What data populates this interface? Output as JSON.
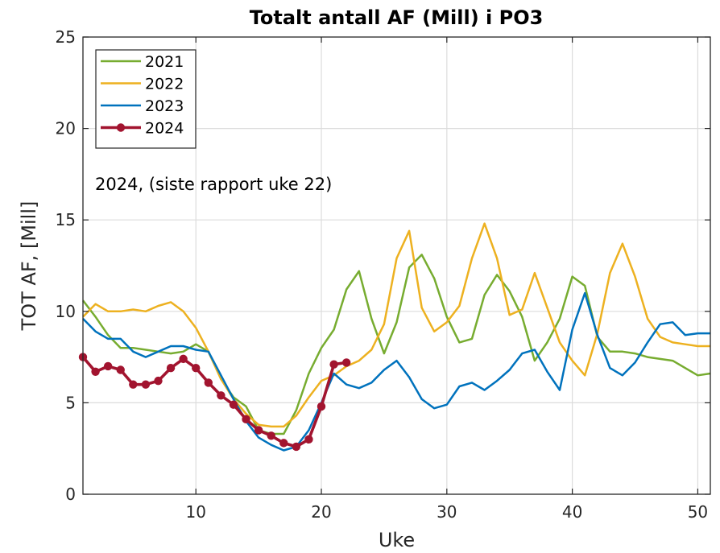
{
  "chart_data": {
    "type": "line",
    "title": "Totalt antall AF (Mill) i PO3",
    "xlabel": "Uke",
    "ylabel": "TOT AF, [Mill]",
    "xlim": [
      1,
      51
    ],
    "ylim": [
      0,
      25
    ],
    "xticks": [
      10,
      20,
      30,
      40,
      50
    ],
    "yticks": [
      0,
      5,
      10,
      15,
      20,
      25
    ],
    "grid": true,
    "legend_position": "top-left",
    "annotation": "2024, (siste rapport uke 22)",
    "series": [
      {
        "name": "2021",
        "color": "#77ac30",
        "marker": false,
        "x": [
          1,
          2,
          3,
          4,
          5,
          6,
          7,
          8,
          9,
          10,
          11,
          12,
          13,
          14,
          15,
          16,
          17,
          18,
          19,
          20,
          21,
          22,
          23,
          24,
          25,
          26,
          27,
          28,
          29,
          30,
          31,
          32,
          33,
          34,
          35,
          36,
          37,
          38,
          39,
          40,
          41,
          42,
          43,
          44,
          45,
          46,
          47,
          48,
          49,
          50,
          51
        ],
        "y": [
          10.6,
          9.7,
          8.7,
          8.0,
          8.0,
          7.9,
          7.8,
          7.7,
          7.8,
          8.2,
          7.8,
          6.3,
          5.3,
          4.8,
          3.5,
          3.3,
          3.3,
          4.6,
          6.6,
          8.0,
          9.0,
          11.2,
          12.2,
          9.6,
          7.7,
          9.4,
          12.4,
          13.1,
          11.8,
          9.7,
          8.3,
          8.5,
          10.9,
          12.0,
          11.1,
          9.7,
          7.3,
          8.3,
          9.6,
          11.9,
          11.4,
          8.6,
          7.8,
          7.8,
          7.7,
          7.5,
          7.4,
          7.3,
          6.9,
          6.5,
          6.6
        ]
      },
      {
        "name": "2022",
        "color": "#edb120",
        "marker": false,
        "x": [
          1,
          2,
          3,
          4,
          5,
          6,
          7,
          8,
          9,
          10,
          11,
          12,
          13,
          14,
          15,
          16,
          17,
          18,
          19,
          20,
          21,
          22,
          23,
          24,
          25,
          26,
          27,
          28,
          29,
          30,
          31,
          32,
          33,
          34,
          35,
          36,
          37,
          38,
          39,
          40,
          41,
          42,
          43,
          44,
          45,
          46,
          47,
          48,
          49,
          50,
          51
        ],
        "y": [
          9.7,
          10.4,
          10.0,
          10.0,
          10.1,
          10.0,
          10.3,
          10.5,
          10.0,
          9.1,
          7.8,
          6.3,
          5.2,
          4.4,
          3.8,
          3.7,
          3.7,
          4.3,
          5.3,
          6.2,
          6.5,
          7.0,
          7.3,
          7.9,
          9.3,
          12.9,
          14.4,
          10.2,
          8.9,
          9.4,
          10.3,
          12.9,
          14.8,
          12.9,
          9.8,
          10.1,
          12.1,
          10.2,
          8.3,
          7.3,
          6.5,
          8.8,
          12.1,
          13.7,
          11.9,
          9.6,
          8.6,
          8.3,
          8.2,
          8.1,
          8.1
        ]
      },
      {
        "name": "2023",
        "color": "#0072bd",
        "marker": false,
        "x": [
          1,
          2,
          3,
          4,
          5,
          6,
          7,
          8,
          9,
          10,
          11,
          12,
          13,
          14,
          15,
          16,
          17,
          18,
          19,
          20,
          21,
          22,
          23,
          24,
          25,
          26,
          27,
          28,
          29,
          30,
          31,
          32,
          33,
          34,
          35,
          36,
          37,
          38,
          39,
          40,
          41,
          42,
          43,
          44,
          45,
          46,
          47,
          48,
          49,
          50,
          51
        ],
        "y": [
          9.6,
          8.9,
          8.5,
          8.5,
          7.8,
          7.5,
          7.8,
          8.1,
          8.1,
          7.9,
          7.8,
          6.5,
          5.2,
          4.0,
          3.1,
          2.7,
          2.4,
          2.6,
          3.5,
          5.0,
          6.6,
          6.0,
          5.8,
          6.1,
          6.8,
          7.3,
          6.4,
          5.2,
          4.7,
          4.9,
          5.9,
          6.1,
          5.7,
          6.2,
          6.8,
          7.7,
          7.9,
          6.7,
          5.7,
          9.0,
          11.0,
          8.7,
          6.9,
          6.5,
          7.2,
          8.3,
          9.3,
          9.4,
          8.7,
          8.8,
          8.8
        ]
      },
      {
        "name": "2024",
        "color": "#a2142f",
        "marker": true,
        "x": [
          1,
          2,
          3,
          4,
          5,
          6,
          7,
          8,
          9,
          10,
          11,
          12,
          13,
          14,
          15,
          16,
          17,
          18,
          19,
          20,
          21,
          22
        ],
        "y": [
          7.5,
          6.7,
          7.0,
          6.8,
          6.0,
          6.0,
          6.2,
          6.9,
          7.4,
          6.9,
          6.1,
          5.4,
          4.9,
          4.1,
          3.5,
          3.2,
          2.8,
          2.6,
          3.0,
          4.8,
          7.1,
          7.2
        ]
      }
    ]
  }
}
